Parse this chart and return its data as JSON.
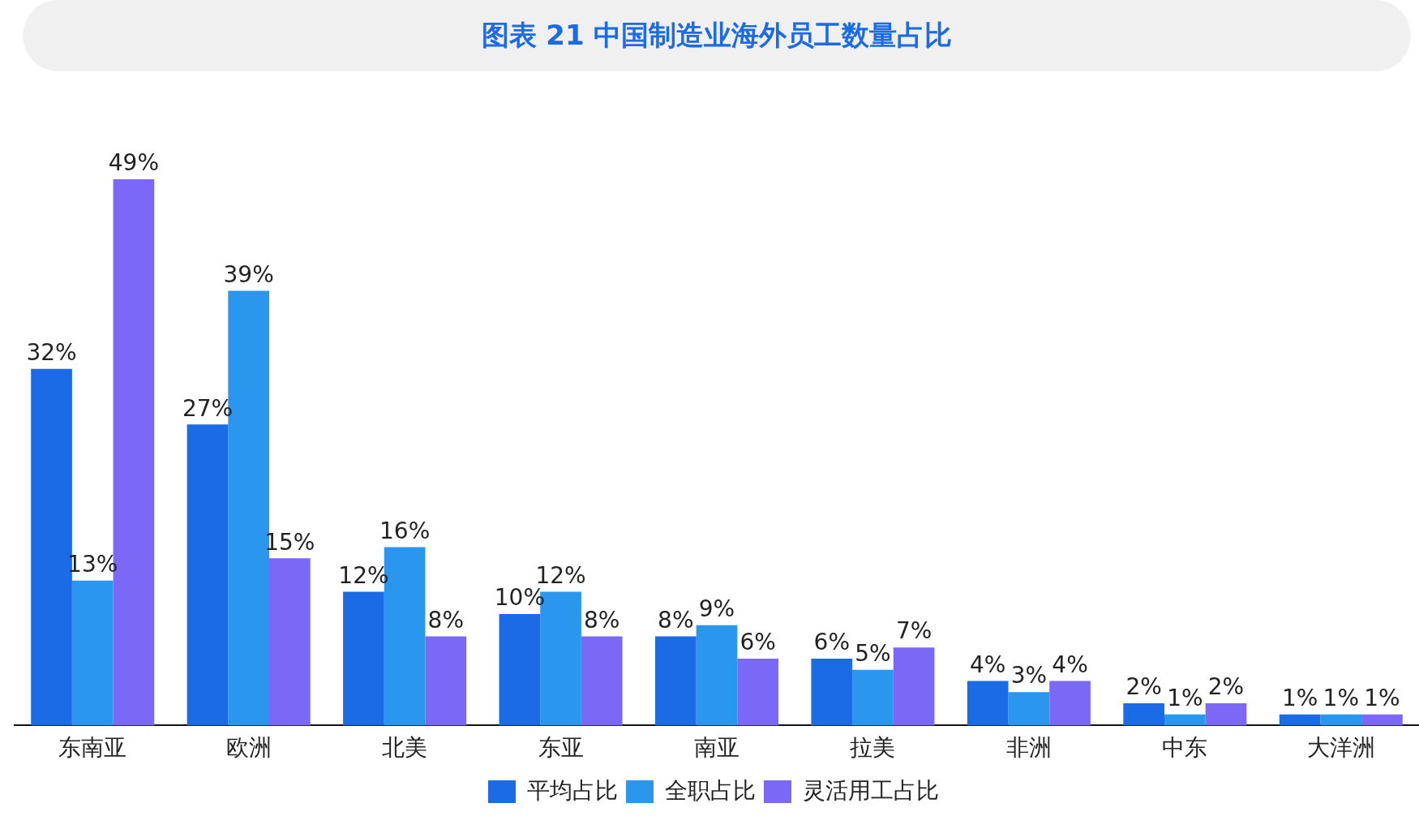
{
  "chart_data": {
    "type": "bar",
    "title": "图表 21 中国制造业海外员工数量占比",
    "categories": [
      "东南亚",
      "欧洲",
      "北美",
      "东亚",
      "南亚",
      "拉美",
      "非洲",
      "中东",
      "大洋洲"
    ],
    "series": [
      {
        "name": "平均占比",
        "color": "#1b6ae6",
        "values": [
          32,
          27,
          12,
          10,
          8,
          6,
          4,
          2,
          1
        ],
        "value_labels": [
          "32%",
          "27%",
          "12%",
          "10%",
          "8%",
          "6%",
          "4%",
          "2%",
          "1%"
        ]
      },
      {
        "name": "全职占比",
        "color": "#2a96ee",
        "values": [
          13,
          39,
          16,
          12,
          9,
          5,
          3,
          1,
          1
        ],
        "value_labels": [
          "13%",
          "39%",
          "16%",
          "12%",
          "9%",
          "5%",
          "3%",
          "1%",
          "1%"
        ]
      },
      {
        "name": "灵活用工占比",
        "color": "#7b68f6",
        "values": [
          49,
          15,
          8,
          8,
          6,
          7,
          4,
          2,
          1
        ],
        "value_labels": [
          "49%",
          "15%",
          "8%",
          "8%",
          "6%",
          "7%",
          "4%",
          "2%",
          "1%"
        ]
      }
    ],
    "relative": false,
    "legend": "bottom",
    "grid": false
  }
}
